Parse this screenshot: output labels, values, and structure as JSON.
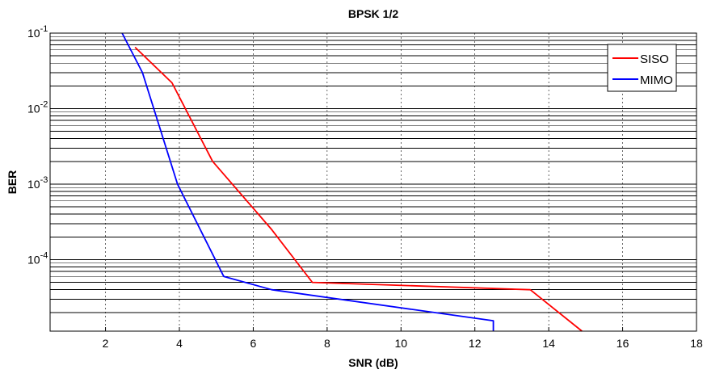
{
  "chart_data": {
    "type": "line",
    "title": "BPSK 1/2",
    "xlabel": "SNR (dB)",
    "ylabel": "BER",
    "xlim": [
      0.5,
      18
    ],
    "ylim": [
      1.13e-05,
      0.1
    ],
    "yscale": "log",
    "grid": true,
    "legend_position": "top-right",
    "x_ticks": [
      2,
      4,
      6,
      8,
      10,
      12,
      14,
      16,
      18
    ],
    "y_ticks": [
      {
        "base": "10",
        "exp": "-1",
        "value": 0.1
      },
      {
        "base": "10",
        "exp": "-2",
        "value": 0.01
      },
      {
        "base": "10",
        "exp": "-3",
        "value": 0.001
      },
      {
        "base": "10",
        "exp": "-4",
        "value": 0.0001
      }
    ],
    "series": [
      {
        "name": "SISO",
        "color": "#ff0000",
        "x": [
          2.8,
          3.8,
          4.9,
          6.5,
          7.6,
          13.5,
          14.9
        ],
        "y": [
          0.065,
          0.022,
          0.002,
          0.00025,
          5e-05,
          4e-05,
          1.13e-05
        ]
      },
      {
        "name": "MIMO",
        "color": "#0000ff",
        "x": [
          2.45,
          3.0,
          3.95,
          5.2,
          6.5,
          12.5,
          12.5
        ],
        "y": [
          0.1,
          0.03,
          0.001,
          6e-05,
          4e-05,
          1.55e-05,
          1.13e-05
        ]
      }
    ]
  }
}
